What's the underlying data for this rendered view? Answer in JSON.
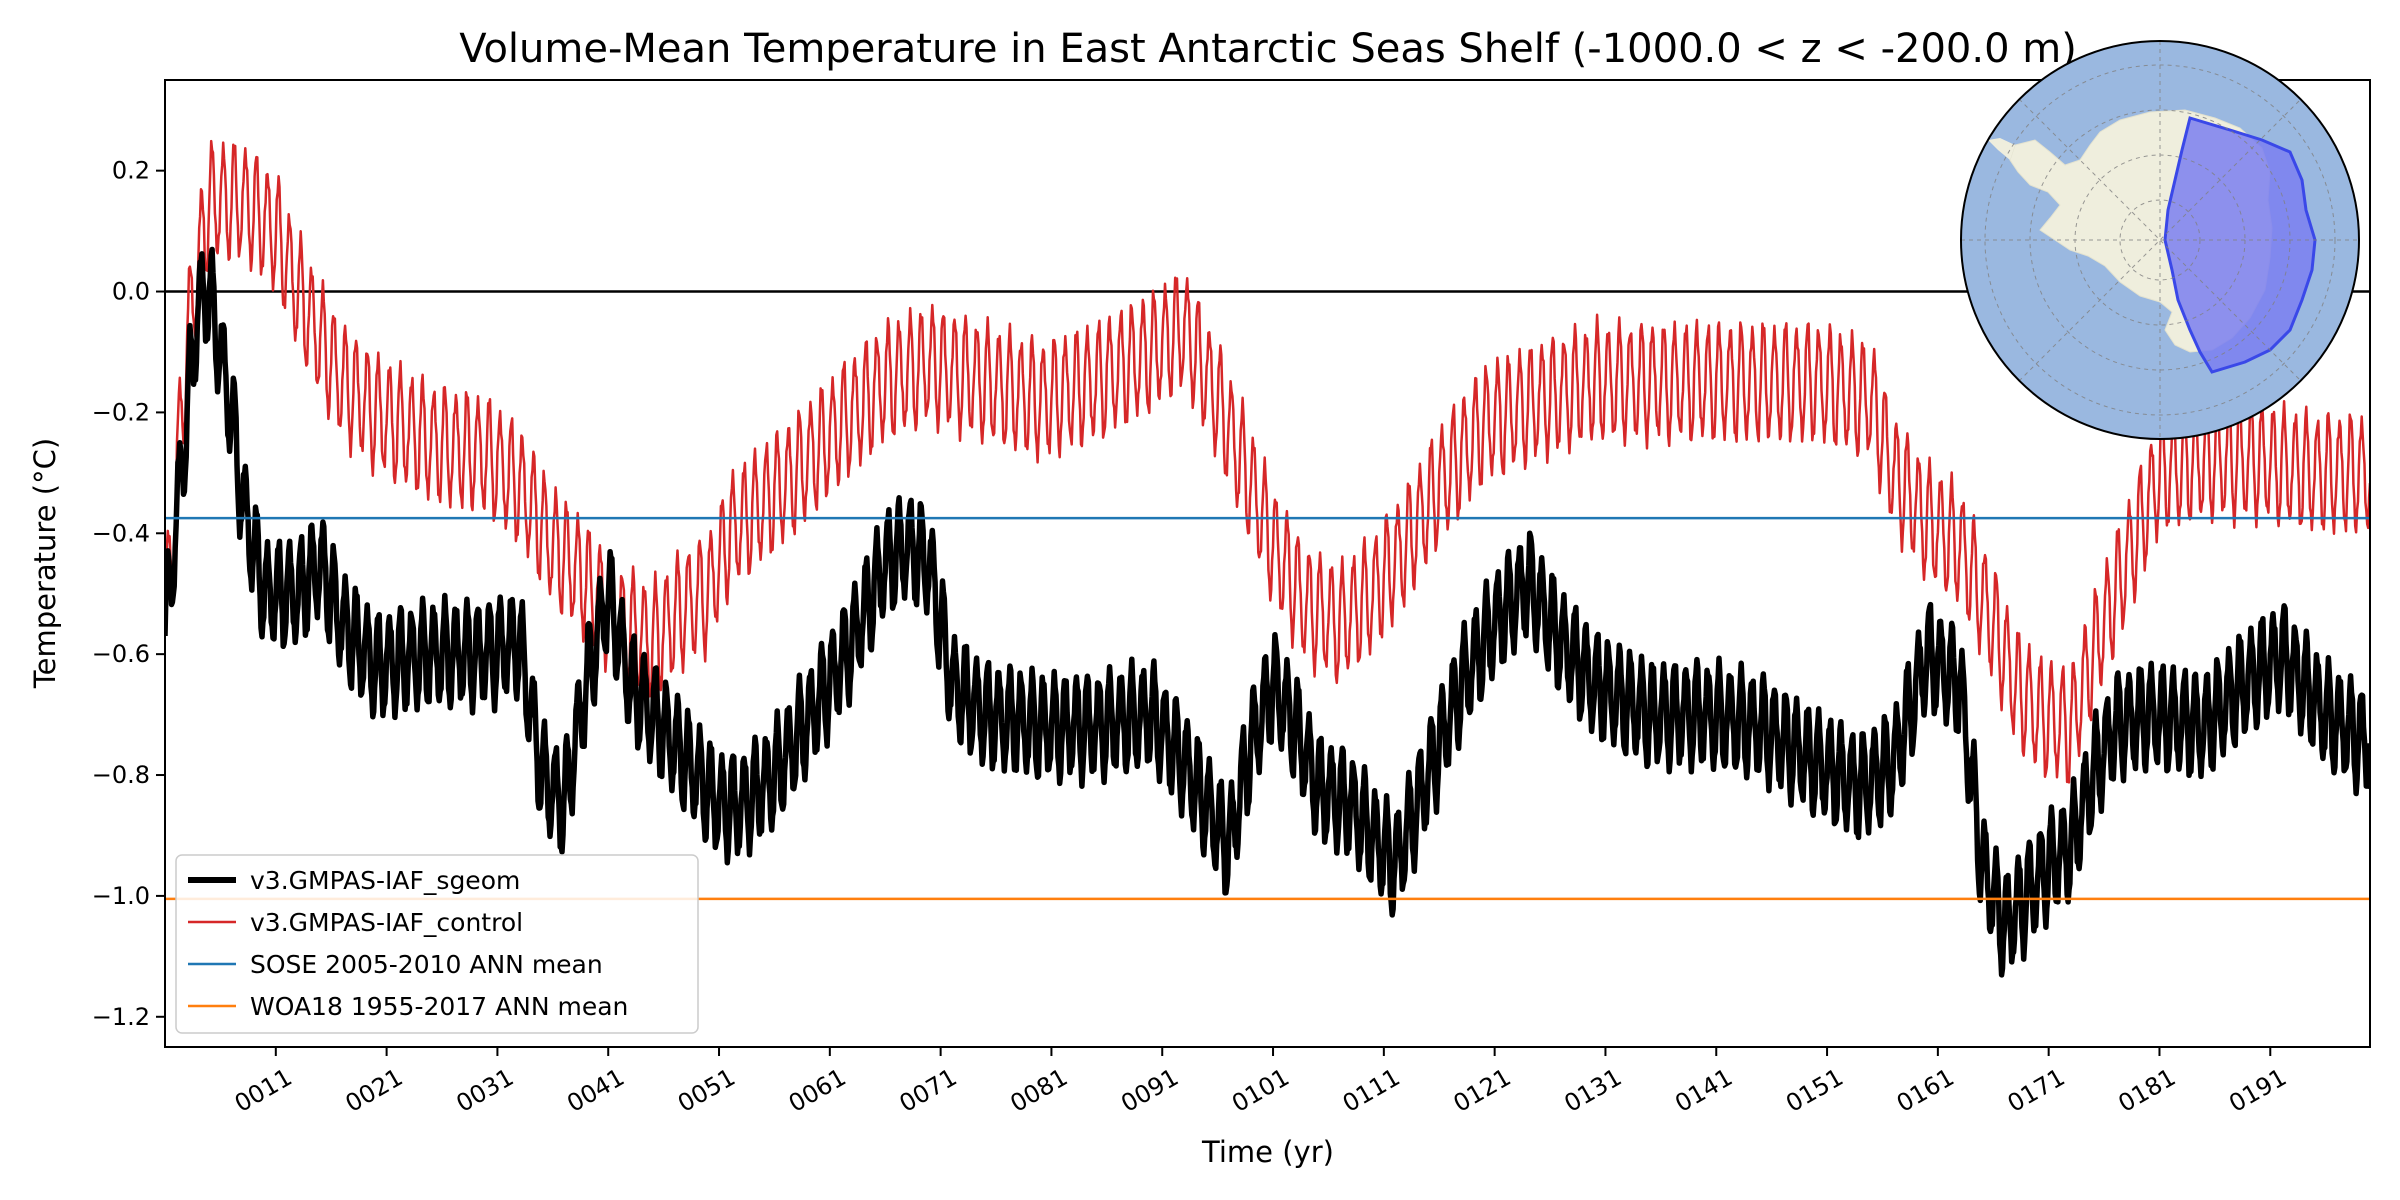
{
  "chart_data": {
    "type": "line",
    "title": "Volume-Mean Temperature in East Antarctic Seas Shelf (-1000.0 < z < -200.0 m)",
    "xlabel": "Time (yr)",
    "ylabel": "Temperature (°C)",
    "xlim": [
      1,
      200
    ],
    "ylim": [
      -1.25,
      0.35
    ],
    "x_ticks": [
      11,
      21,
      31,
      41,
      51,
      61,
      71,
      81,
      91,
      101,
      111,
      121,
      131,
      141,
      151,
      161,
      171,
      181,
      191
    ],
    "x_tick_labels": [
      "0011",
      "0021",
      "0031",
      "0041",
      "0051",
      "0061",
      "0071",
      "0081",
      "0091",
      "0101",
      "0111",
      "0121",
      "0131",
      "0141",
      "0151",
      "0161",
      "0171",
      "0181",
      "0191"
    ],
    "y_ticks": [
      0.2,
      0.0,
      -0.2,
      -0.4,
      -0.6,
      -0.8,
      -1.0,
      -1.2
    ],
    "y_tick_labels": [
      "0.2",
      "0.0",
      "−0.2",
      "−0.4",
      "−0.6",
      "−0.8",
      "−1.0",
      "−1.2"
    ],
    "zero_line": 0.0,
    "legend_position": "lower-left",
    "series": [
      {
        "name": "v3.GMPAS-IAF_sgeom",
        "color": "#000000",
        "style": "thick",
        "seasonal_amplitude": 0.08,
        "anchors": [
          [
            1,
            -0.57
          ],
          [
            3,
            -0.2
          ],
          [
            4,
            -0.02
          ],
          [
            5,
            0.0
          ],
          [
            6,
            -0.1
          ],
          [
            7,
            -0.2
          ],
          [
            8,
            -0.35
          ],
          [
            10,
            -0.5
          ],
          [
            13,
            -0.5
          ],
          [
            15,
            -0.45
          ],
          [
            17,
            -0.55
          ],
          [
            20,
            -0.62
          ],
          [
            25,
            -0.6
          ],
          [
            30,
            -0.6
          ],
          [
            33,
            -0.58
          ],
          [
            35,
            -0.8
          ],
          [
            37,
            -0.85
          ],
          [
            39,
            -0.65
          ],
          [
            41,
            -0.5
          ],
          [
            43,
            -0.65
          ],
          [
            45,
            -0.7
          ],
          [
            47,
            -0.75
          ],
          [
            49,
            -0.8
          ],
          [
            51,
            -0.85
          ],
          [
            53,
            -0.85
          ],
          [
            56,
            -0.8
          ],
          [
            60,
            -0.68
          ],
          [
            63,
            -0.58
          ],
          [
            66,
            -0.45
          ],
          [
            68,
            -0.42
          ],
          [
            70,
            -0.45
          ],
          [
            72,
            -0.65
          ],
          [
            75,
            -0.7
          ],
          [
            80,
            -0.72
          ],
          [
            85,
            -0.72
          ],
          [
            90,
            -0.7
          ],
          [
            93,
            -0.78
          ],
          [
            95,
            -0.85
          ],
          [
            97,
            -0.92
          ],
          [
            99,
            -0.75
          ],
          [
            101,
            -0.65
          ],
          [
            103,
            -0.72
          ],
          [
            105,
            -0.82
          ],
          [
            108,
            -0.85
          ],
          [
            110,
            -0.9
          ],
          [
            112,
            -0.95
          ],
          [
            115,
            -0.8
          ],
          [
            118,
            -0.65
          ],
          [
            121,
            -0.55
          ],
          [
            124,
            -0.48
          ],
          [
            127,
            -0.58
          ],
          [
            130,
            -0.65
          ],
          [
            135,
            -0.7
          ],
          [
            140,
            -0.7
          ],
          [
            145,
            -0.72
          ],
          [
            150,
            -0.78
          ],
          [
            154,
            -0.82
          ],
          [
            157,
            -0.78
          ],
          [
            160,
            -0.6
          ],
          [
            163,
            -0.65
          ],
          [
            165,
            -0.95
          ],
          [
            167,
            -1.05
          ],
          [
            169,
            -1.0
          ],
          [
            171,
            -0.95
          ],
          [
            173,
            -0.92
          ],
          [
            175,
            -0.8
          ],
          [
            177,
            -0.72
          ],
          [
            180,
            -0.7
          ],
          [
            185,
            -0.72
          ],
          [
            188,
            -0.66
          ],
          [
            192,
            -0.6
          ],
          [
            196,
            -0.7
          ],
          [
            200,
            -0.75
          ]
        ]
      },
      {
        "name": "v3.GMPAS-IAF_control",
        "color": "#d62728",
        "style": "thin",
        "seasonal_amplitude": 0.09,
        "anchors": [
          [
            1,
            -0.55
          ],
          [
            3,
            -0.08
          ],
          [
            4,
            0.05
          ],
          [
            5,
            0.15
          ],
          [
            8,
            0.15
          ],
          [
            11,
            0.1
          ],
          [
            13,
            0.0
          ],
          [
            15,
            -0.08
          ],
          [
            17,
            -0.15
          ],
          [
            20,
            -0.2
          ],
          [
            25,
            -0.25
          ],
          [
            30,
            -0.27
          ],
          [
            33,
            -0.32
          ],
          [
            36,
            -0.42
          ],
          [
            39,
            -0.48
          ],
          [
            42,
            -0.55
          ],
          [
            45,
            -0.58
          ],
          [
            48,
            -0.52
          ],
          [
            50,
            -0.5
          ],
          [
            52,
            -0.4
          ],
          [
            55,
            -0.35
          ],
          [
            58,
            -0.3
          ],
          [
            62,
            -0.22
          ],
          [
            66,
            -0.15
          ],
          [
            70,
            -0.12
          ],
          [
            75,
            -0.15
          ],
          [
            80,
            -0.18
          ],
          [
            85,
            -0.15
          ],
          [
            90,
            -0.1
          ],
          [
            93,
            -0.06
          ],
          [
            96,
            -0.18
          ],
          [
            99,
            -0.32
          ],
          [
            101,
            -0.42
          ],
          [
            104,
            -0.52
          ],
          [
            107,
            -0.55
          ],
          [
            110,
            -0.5
          ],
          [
            113,
            -0.42
          ],
          [
            116,
            -0.32
          ],
          [
            120,
            -0.22
          ],
          [
            125,
            -0.18
          ],
          [
            130,
            -0.15
          ],
          [
            135,
            -0.15
          ],
          [
            140,
            -0.15
          ],
          [
            145,
            -0.15
          ],
          [
            150,
            -0.15
          ],
          [
            155,
            -0.18
          ],
          [
            157,
            -0.3
          ],
          [
            160,
            -0.38
          ],
          [
            163,
            -0.42
          ],
          [
            166,
            -0.55
          ],
          [
            168,
            -0.65
          ],
          [
            170,
            -0.7
          ],
          [
            173,
            -0.72
          ],
          [
            175,
            -0.6
          ],
          [
            178,
            -0.45
          ],
          [
            181,
            -0.3
          ],
          [
            185,
            -0.28
          ],
          [
            190,
            -0.28
          ],
          [
            195,
            -0.3
          ],
          [
            200,
            -0.3
          ]
        ]
      },
      {
        "name": "SOSE 2005-2010 ANN mean",
        "color": "#1f77b4",
        "style": "horizontal",
        "value": -0.375
      },
      {
        "name": "WOA18 1955-2017 ANN mean",
        "color": "#ff7f0e",
        "style": "horizontal",
        "value": -1.005
      }
    ]
  },
  "inset_map": {
    "description_label": "East Antarctic Seas region map",
    "ocean_color": "#9ab8e0",
    "land_color": "#efeedd",
    "region_color": "#7b7ff0"
  }
}
